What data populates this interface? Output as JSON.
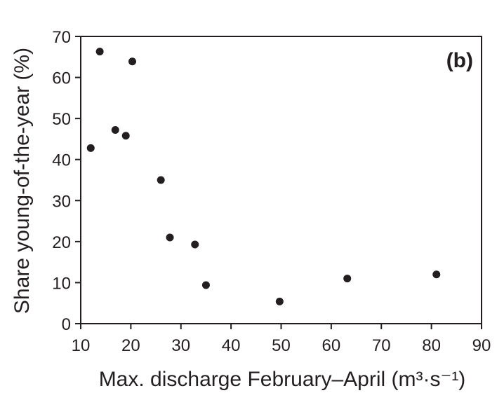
{
  "chart_data": {
    "type": "scatter",
    "panel_label": "(b)",
    "xlabel": "Max. discharge February–April (m³·s⁻¹)",
    "ylabel": "Share young-of-the-year (%)",
    "xlim": [
      10,
      90
    ],
    "ylim": [
      0,
      70
    ],
    "x_ticks": [
      10,
      20,
      30,
      40,
      50,
      60,
      70,
      80,
      90
    ],
    "y_ticks": [
      0,
      10,
      20,
      30,
      40,
      50,
      60,
      70
    ],
    "grid": false,
    "legend": "none",
    "marker_color": "#231f20",
    "points": [
      {
        "x": 12.0,
        "y": 42.8
      },
      {
        "x": 13.8,
        "y": 66.3
      },
      {
        "x": 16.9,
        "y": 47.2
      },
      {
        "x": 19.0,
        "y": 45.8
      },
      {
        "x": 20.3,
        "y": 63.9
      },
      {
        "x": 26.0,
        "y": 35.0
      },
      {
        "x": 27.8,
        "y": 21.0
      },
      {
        "x": 32.8,
        "y": 19.3
      },
      {
        "x": 35.0,
        "y": 9.4
      },
      {
        "x": 49.7,
        "y": 5.4
      },
      {
        "x": 63.2,
        "y": 11.0
      },
      {
        "x": 81.0,
        "y": 12.0
      }
    ]
  }
}
